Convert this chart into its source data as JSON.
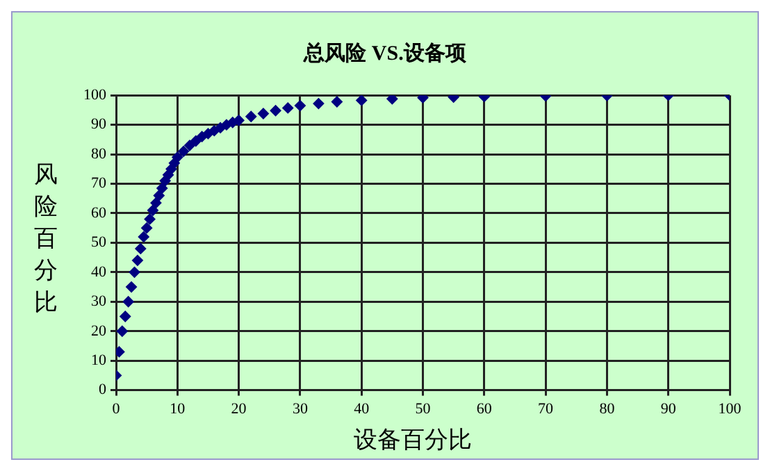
{
  "chart_data": {
    "type": "scatter",
    "title": "总风险 VS.设备项",
    "xlabel": "设备百分比",
    "ylabel": "风险百分比",
    "series": [
      {
        "color": "#000080",
        "x": [
          0,
          0.5,
          1,
          1.5,
          2,
          2.5,
          3,
          3.5,
          4,
          4.5,
          5,
          5.5,
          6,
          6.5,
          7,
          7.5,
          8,
          8.5,
          9,
          9.5,
          10,
          11,
          12,
          13,
          14,
          15,
          16,
          17,
          18,
          19,
          20,
          22,
          24,
          26,
          28,
          30,
          33,
          36,
          40,
          45,
          50,
          55,
          60,
          70,
          80,
          90,
          100
        ],
        "values": [
          5,
          13,
          20,
          25,
          30,
          35,
          40,
          44,
          48,
          52,
          55,
          58,
          61,
          63.5,
          66,
          68.5,
          71,
          73,
          75,
          77,
          79,
          81,
          83,
          84.5,
          86,
          87,
          88,
          89,
          90,
          90.8,
          91.5,
          92.8,
          93.8,
          94.8,
          95.7,
          96.5,
          97.2,
          97.8,
          98.3,
          98.8,
          99.2,
          99.4,
          99.6,
          99.8,
          99.9,
          100,
          100
        ]
      }
    ],
    "marker": "diamond",
    "xlim": [
      0,
      100
    ],
    "ylim": [
      0,
      100
    ],
    "xticks": [
      0,
      10,
      20,
      30,
      40,
      50,
      60,
      70,
      80,
      90,
      100
    ],
    "yticks": [
      0,
      10,
      20,
      30,
      40,
      50,
      60,
      70,
      80,
      90,
      100
    ],
    "grid": true,
    "legend": false
  }
}
